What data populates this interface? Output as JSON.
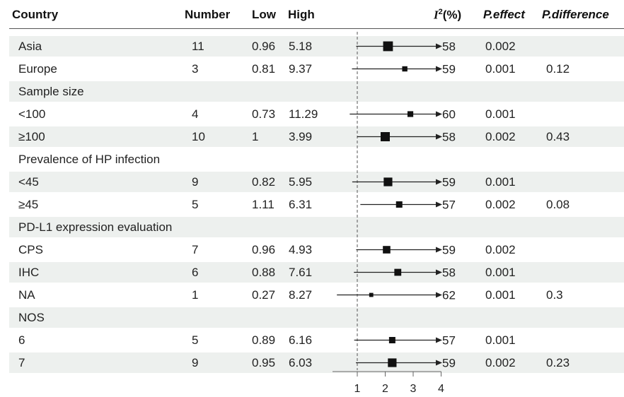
{
  "header": {
    "country": "Country",
    "number": "Number",
    "low": "Low",
    "high": "High",
    "i2_label": "I",
    "i2_sup": "2",
    "i2_unit": "(%)",
    "peffect": "P.effect",
    "pdiff": "P.difference"
  },
  "rows": [
    {
      "label": "Asia",
      "number": "11",
      "low": "0.96",
      "high": "5.18",
      "i2": "58",
      "peffect": "0.002",
      "pdiff": "",
      "shaded": true
    },
    {
      "label": "Europe",
      "number": "3",
      "low": "0.81",
      "high": "9.37",
      "i2": "59",
      "peffect": "0.001",
      "pdiff": "0.12",
      "shaded": false
    },
    {
      "label": "Sample size",
      "number": "",
      "low": "",
      "high": "",
      "i2": "",
      "peffect": "",
      "pdiff": "",
      "shaded": true
    },
    {
      "label": "<100",
      "number": "4",
      "low": "0.73",
      "high": "11.29",
      "i2": "60",
      "peffect": "0.001",
      "pdiff": "",
      "shaded": false
    },
    {
      "label": "≥100",
      "number": "10",
      "low": "1",
      "high": "3.99",
      "i2": "58",
      "peffect": "0.002",
      "pdiff": "0.43",
      "shaded": true
    },
    {
      "label": "Prevalence of HP infection",
      "number": "",
      "low": "",
      "high": "",
      "i2": "",
      "peffect": "",
      "pdiff": "",
      "shaded": false
    },
    {
      "label": "<45",
      "number": "9",
      "low": "0.82",
      "high": "5.95",
      "i2": "59",
      "peffect": "0.001",
      "pdiff": "",
      "shaded": true
    },
    {
      "label": "≥45",
      "number": "5",
      "low": "1.11",
      "high": "6.31",
      "i2": "57",
      "peffect": "0.002",
      "pdiff": "0.08",
      "shaded": false
    },
    {
      "label": "PD-L1 expression evaluation",
      "number": "",
      "low": "",
      "high": "",
      "i2": "",
      "peffect": "",
      "pdiff": "",
      "shaded": true
    },
    {
      "label": "CPS",
      "number": "7",
      "low": "0.96",
      "high": "4.93",
      "i2": "59",
      "peffect": "0.002",
      "pdiff": "",
      "shaded": false
    },
    {
      "label": "IHC",
      "number": "6",
      "low": "0.88",
      "high": "7.61",
      "i2": "58",
      "peffect": "0.001",
      "pdiff": "",
      "shaded": true
    },
    {
      "label": "NA",
      "number": "1",
      "low": "0.27",
      "high": "8.27",
      "i2": "62",
      "peffect": "0.001",
      "pdiff": "0.3",
      "shaded": false
    },
    {
      "label": "NOS",
      "number": "",
      "low": "",
      "high": "",
      "i2": "",
      "peffect": "",
      "pdiff": "",
      "shaded": true
    },
    {
      "label": "6",
      "number": "5",
      "low": "0.89",
      "high": "6.16",
      "i2": "57",
      "peffect": "0.001",
      "pdiff": "",
      "shaded": false
    },
    {
      "label": "7",
      "number": "9",
      "low": "0.95",
      "high": "6.03",
      "i2": "59",
      "peffect": "0.002",
      "pdiff": "0.23",
      "shaded": true
    }
  ],
  "chart_data": {
    "type": "forest",
    "x_ticks": [
      "1",
      "2",
      "3",
      "4"
    ],
    "xlim": [
      1,
      4
    ],
    "reference_line": 1,
    "points": [
      {
        "row": "Asia",
        "estimate": 2.1,
        "low": 0.96,
        "high": 5.18,
        "weight": 11
      },
      {
        "row": "Europe",
        "estimate": 2.7,
        "low": 0.81,
        "high": 9.37,
        "weight": 3
      },
      {
        "row": "<100",
        "estimate": 2.9,
        "low": 0.73,
        "high": 11.29,
        "weight": 4
      },
      {
        "row": "≥100",
        "estimate": 2.0,
        "low": 1,
        "high": 3.99,
        "weight": 10
      },
      {
        "row": "<45",
        "estimate": 2.1,
        "low": 0.82,
        "high": 5.95,
        "weight": 9
      },
      {
        "row": "≥45",
        "estimate": 2.5,
        "low": 1.11,
        "high": 6.31,
        "weight": 5
      },
      {
        "row": "CPS",
        "estimate": 2.05,
        "low": 0.96,
        "high": 4.93,
        "weight": 7
      },
      {
        "row": "IHC",
        "estimate": 2.45,
        "low": 0.88,
        "high": 7.61,
        "weight": 6
      },
      {
        "row": "NA",
        "estimate": 1.5,
        "low": 0.27,
        "high": 8.27,
        "weight": 1
      },
      {
        "row": "6",
        "estimate": 2.25,
        "low": 0.89,
        "high": 6.16,
        "weight": 5
      },
      {
        "row": "7",
        "estimate": 2.25,
        "low": 0.95,
        "high": 6.03,
        "weight": 9
      }
    ],
    "colors": {
      "shade": "#edf0ee",
      "ink": "#111111",
      "whisker": "#222222"
    }
  }
}
